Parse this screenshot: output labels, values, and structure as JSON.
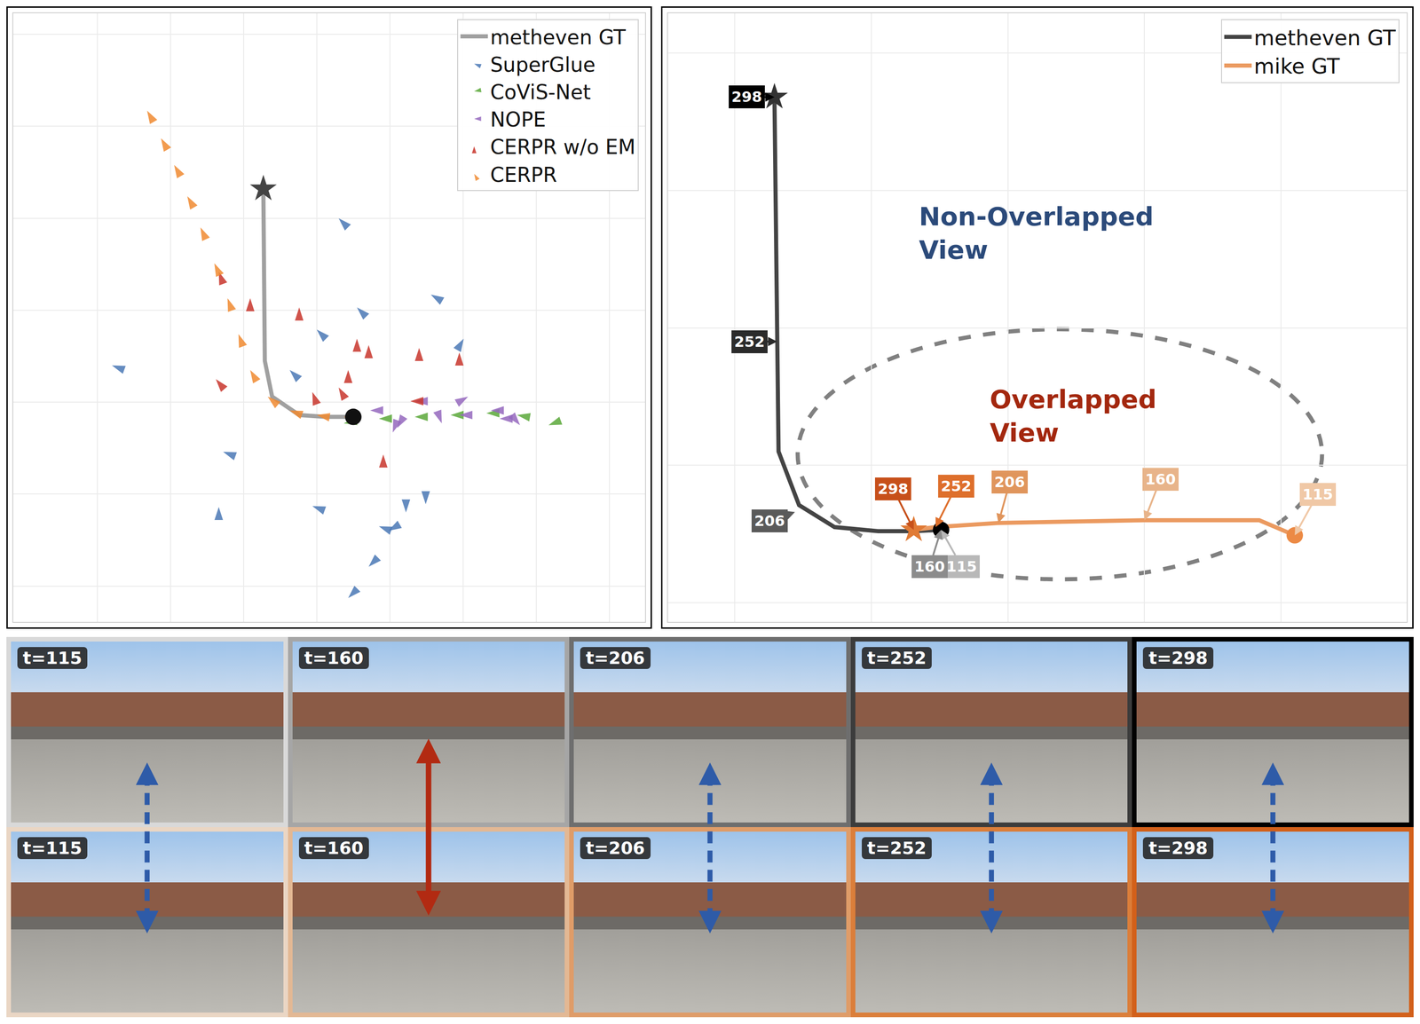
{
  "chart_data": [
    {
      "type": "scatter",
      "xlim": [
        -5.15,
        3.49
      ],
      "ylim": [
        -2.39,
        4.23
      ],
      "xticks": [
        -4,
        -3,
        -2,
        -1,
        0,
        1,
        2,
        3
      ],
      "yticks": [
        -2,
        -1,
        0,
        1,
        2,
        3,
        4
      ],
      "grid": true,
      "tick_labels": false,
      "legend": "top right",
      "series": [
        {
          "name": "metheven GT",
          "type": "line",
          "color": "#a0a0a0",
          "x": [
            -1.73,
            -1.72,
            -1.71,
            -1.61,
            -1.24,
            -0.88,
            -0.5
          ],
          "y": [
            2.32,
            1.2,
            0.45,
            0.06,
            -0.14,
            -0.16,
            -0.16
          ]
        },
        {
          "name": "SuperGlue",
          "type": "scatter",
          "marker": "arrow",
          "color": "#4a78b5",
          "x": [
            -3.8,
            -0.7,
            0.56,
            -0.45,
            1.01,
            -1.0,
            -2.28,
            -2.34,
            -1.06,
            -0.15,
            0.22,
            0.49,
            -0.29,
            -0.57,
            -1.37,
            -0.02
          ],
          "y": [
            0.4,
            2.0,
            1.17,
            1.03,
            0.69,
            0.79,
            -0.54,
            -1.14,
            -1.13,
            -1.35,
            -1.2,
            -1.11,
            -1.79,
            -2.13,
            0.35,
            -1.4
          ],
          "headings": [
            -70,
            -45,
            -60,
            -45,
            30,
            -45,
            -70,
            0,
            -70,
            -70,
            180,
            180,
            -135,
            -135,
            -45,
            -120
          ]
        },
        {
          "name": "CoViS-Net",
          "type": "scatter",
          "marker": "arrow",
          "color": "#5aa83a",
          "x": [
            -0.63,
            -0.15,
            0.34,
            0.83,
            1.32,
            1.74,
            2.17
          ],
          "y": [
            -0.23,
            -0.18,
            -0.16,
            -0.14,
            -0.12,
            -0.14,
            -0.25
          ],
          "headings": [
            -100,
            -90,
            -90,
            -90,
            -90,
            -80,
            -110
          ]
        },
        {
          "name": "NOPE",
          "type": "scatter",
          "marker": "arrow",
          "color": "#9467bd",
          "x": [
            -0.27,
            0.1,
            0.34,
            0.71,
            1.07,
            0.95,
            1.38,
            1.78,
            0.04,
            1.5
          ],
          "y": [
            -0.09,
            -0.28,
            0.01,
            -0.23,
            0.06,
            -0.14,
            -0.09,
            -0.25,
            -0.33,
            -0.18
          ],
          "headings": [
            -90,
            -150,
            -90,
            160,
            60,
            -90,
            -90,
            140,
            -160,
            -90
          ]
        },
        {
          "name": "CERPR w/o EM",
          "type": "scatter",
          "marker": "arrow",
          "color": "#c8352b",
          "x": [
            -1.24,
            -0.45,
            -0.29,
            0.4,
            0.95,
            -2.38,
            -1.06,
            -0.7,
            -0.09,
            -1.91,
            -2.34,
            0.28,
            -0.57
          ],
          "y": [
            1.03,
            0.69,
            0.62,
            0.59,
            0.54,
            0.25,
            0.11,
            0.16,
            -0.57,
            1.13,
            1.42,
            0.01,
            0.35
          ],
          "headings": [
            0,
            0,
            0,
            0,
            0,
            -40,
            -20,
            -30,
            0,
            0,
            -20,
            -90,
            0
          ]
        },
        {
          "name": "CERPR",
          "type": "scatter",
          "marker": "arrow",
          "color": "#f08a30",
          "x": [
            -3.32,
            -3.13,
            -2.95,
            -2.77,
            -2.59,
            -2.4,
            -2.22,
            -2.07,
            -1.91,
            -1.67,
            -1.37,
            -1.0,
            -0.63
          ],
          "y": [
            3.17,
            2.87,
            2.58,
            2.24,
            1.9,
            1.51,
            1.13,
            0.74,
            0.35,
            0.06,
            -0.09,
            -0.14,
            -0.16
          ],
          "headings": [
            -30,
            -30,
            -30,
            -30,
            -25,
            -25,
            -20,
            -20,
            -30,
            -50,
            -70,
            -80,
            -85
          ]
        }
      ],
      "points": [
        {
          "x": -1.73,
          "y": 2.32,
          "marker": "star",
          "color": "#444444"
        },
        {
          "x": -0.5,
          "y": -0.16,
          "marker": "circle",
          "color": "#111111"
        }
      ]
    },
    {
      "type": "line",
      "xlim": [
        -2.49,
        2.92
      ],
      "ylim": [
        -1.14,
        3.29
      ],
      "xticks": [
        -2,
        -1,
        0,
        1,
        2
      ],
      "yticks": [
        -1,
        0,
        1,
        2,
        3
      ],
      "grid": true,
      "tick_labels": false,
      "legend": "top right",
      "series": [
        {
          "name": "metheven GT",
          "type": "line",
          "color": "#444444",
          "x": [
            -1.71,
            -1.69,
            -1.68,
            -1.53,
            -1.27,
            -0.95,
            -0.69,
            -0.49
          ],
          "y": [
            2.68,
            0.9,
            0.1,
            -0.29,
            -0.45,
            -0.48,
            -0.48,
            -0.47
          ],
          "labels": [
            {
              "text": "115",
              "x": -0.49,
              "y": -0.47,
              "color": "#b8b8b8"
            },
            {
              "text": "160",
              "x": -0.49,
              "y": -0.47,
              "color": "#8c8c8c"
            },
            {
              "text": "206",
              "x": -1.56,
              "y": -0.34,
              "color": "#5a5a5a"
            },
            {
              "text": "252",
              "x": -1.69,
              "y": 0.9,
              "color": "#2b2b2b"
            },
            {
              "text": "298",
              "x": -1.71,
              "y": 2.68,
              "color": "#000000"
            }
          ]
        },
        {
          "name": "mike GT",
          "type": "line",
          "color": "#eb9a60",
          "x": [
            2.1,
            1.84,
            1.0,
            -0.07,
            -0.53,
            -0.69
          ],
          "y": [
            -0.51,
            -0.4,
            -0.4,
            -0.42,
            -0.45,
            -0.47
          ],
          "labels": [
            {
              "text": "115",
              "x": 2.1,
              "y": -0.51,
              "color": "#f0c8a6"
            },
            {
              "text": "160",
              "x": 1.0,
              "y": -0.4,
              "color": "#e8b48a"
            },
            {
              "text": "206",
              "x": -0.07,
              "y": -0.42,
              "color": "#e0955c"
            },
            {
              "text": "252",
              "x": -0.53,
              "y": -0.45,
              "color": "#de6f2c"
            },
            {
              "text": "298",
              "x": -0.69,
              "y": -0.47,
              "color": "#c7501a"
            }
          ]
        }
      ],
      "points": [
        {
          "x": -1.71,
          "y": 2.68,
          "marker": "star",
          "color": "#333333"
        },
        {
          "x": -0.69,
          "y": -0.47,
          "marker": "star",
          "color": "#e07a35"
        },
        {
          "x": 2.1,
          "y": -0.51,
          "marker": "circle",
          "color": "#ec8a45"
        },
        {
          "x": -0.49,
          "y": -0.47,
          "marker": "circle",
          "color": "#000000"
        }
      ],
      "overlap_region": {
        "center": [
          0.38,
          0.08
        ],
        "rx": 1.92,
        "ry": 0.91,
        "color": "#808080"
      },
      "annotations": [
        {
          "text": "Non-Overlapped View",
          "x": -0.66,
          "y": 1.69,
          "color": "#2b4a7a"
        },
        {
          "text": "Overlapped View",
          "x": -0.14,
          "y": 0.36,
          "color": "#a3270e"
        }
      ]
    }
  ],
  "image_strip": {
    "rows": [
      {
        "frames": [
          {
            "label": "t=115",
            "border": "#d9d9d9"
          },
          {
            "label": "t=160",
            "border": "#a6a6a6"
          },
          {
            "label": "t=206",
            "border": "#6e6e6e"
          },
          {
            "label": "t=252",
            "border": "#3c3c3c"
          },
          {
            "label": "t=298",
            "border": "#000000"
          }
        ]
      },
      {
        "frames": [
          {
            "label": "t=115",
            "border": "#ead6c4"
          },
          {
            "label": "t=160",
            "border": "#e3b894"
          },
          {
            "label": "t=206",
            "border": "#df9c68"
          },
          {
            "label": "t=252",
            "border": "#db7e3a"
          },
          {
            "label": "t=298",
            "border": "#d2601a"
          }
        ]
      }
    ],
    "links": [
      {
        "line_style": "dashed",
        "color": "#2e5ba8"
      },
      {
        "line_style": "solid",
        "color": "#b22a12"
      },
      {
        "line_style": "dashed",
        "color": "#2e5ba8"
      },
      {
        "line_style": "dashed",
        "color": "#2e5ba8"
      },
      {
        "line_style": "dashed",
        "color": "#2e5ba8"
      }
    ]
  }
}
